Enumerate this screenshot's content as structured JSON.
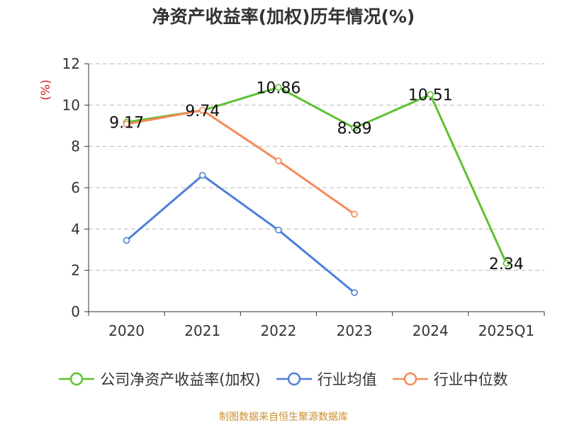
{
  "title": "净资产收益率(加权)历年情况(%)",
  "source": "制图数据来自恒生聚源数据库",
  "colors": {
    "green": "#5cc22f",
    "blue": "#4e7fd8",
    "orange": "#f58a58",
    "source": "#c98f2e",
    "ylabel": "#d01f1f",
    "axis": "#333333",
    "grid": "#bbbbbb"
  },
  "chart_data": {
    "type": "line",
    "title": "净资产收益率(加权)历年情况(%)",
    "xlabel": "",
    "ylabel": "(%)",
    "categories": [
      "2020",
      "2021",
      "2022",
      "2023",
      "2024",
      "2025Q1"
    ],
    "ylim": [
      0,
      12
    ],
    "yticks": [
      0,
      2,
      4,
      6,
      8,
      10,
      12
    ],
    "grid": true,
    "legend_position": "bottom",
    "series": [
      {
        "name": "公司净资产收益率(加权)",
        "color": "#5cc22f",
        "values": [
          9.17,
          9.74,
          10.86,
          8.89,
          10.51,
          2.34
        ],
        "data_labels": [
          "9.17",
          "9.74",
          "10.86",
          "8.89",
          "10.51",
          "2.34"
        ]
      },
      {
        "name": "行业均值",
        "color": "#4e7fd8",
        "values": [
          3.45,
          6.6,
          3.95,
          0.92,
          null,
          null
        ]
      },
      {
        "name": "行业中位数",
        "color": "#f58a58",
        "values": [
          9.08,
          9.75,
          7.3,
          4.72,
          null,
          null
        ]
      }
    ]
  }
}
